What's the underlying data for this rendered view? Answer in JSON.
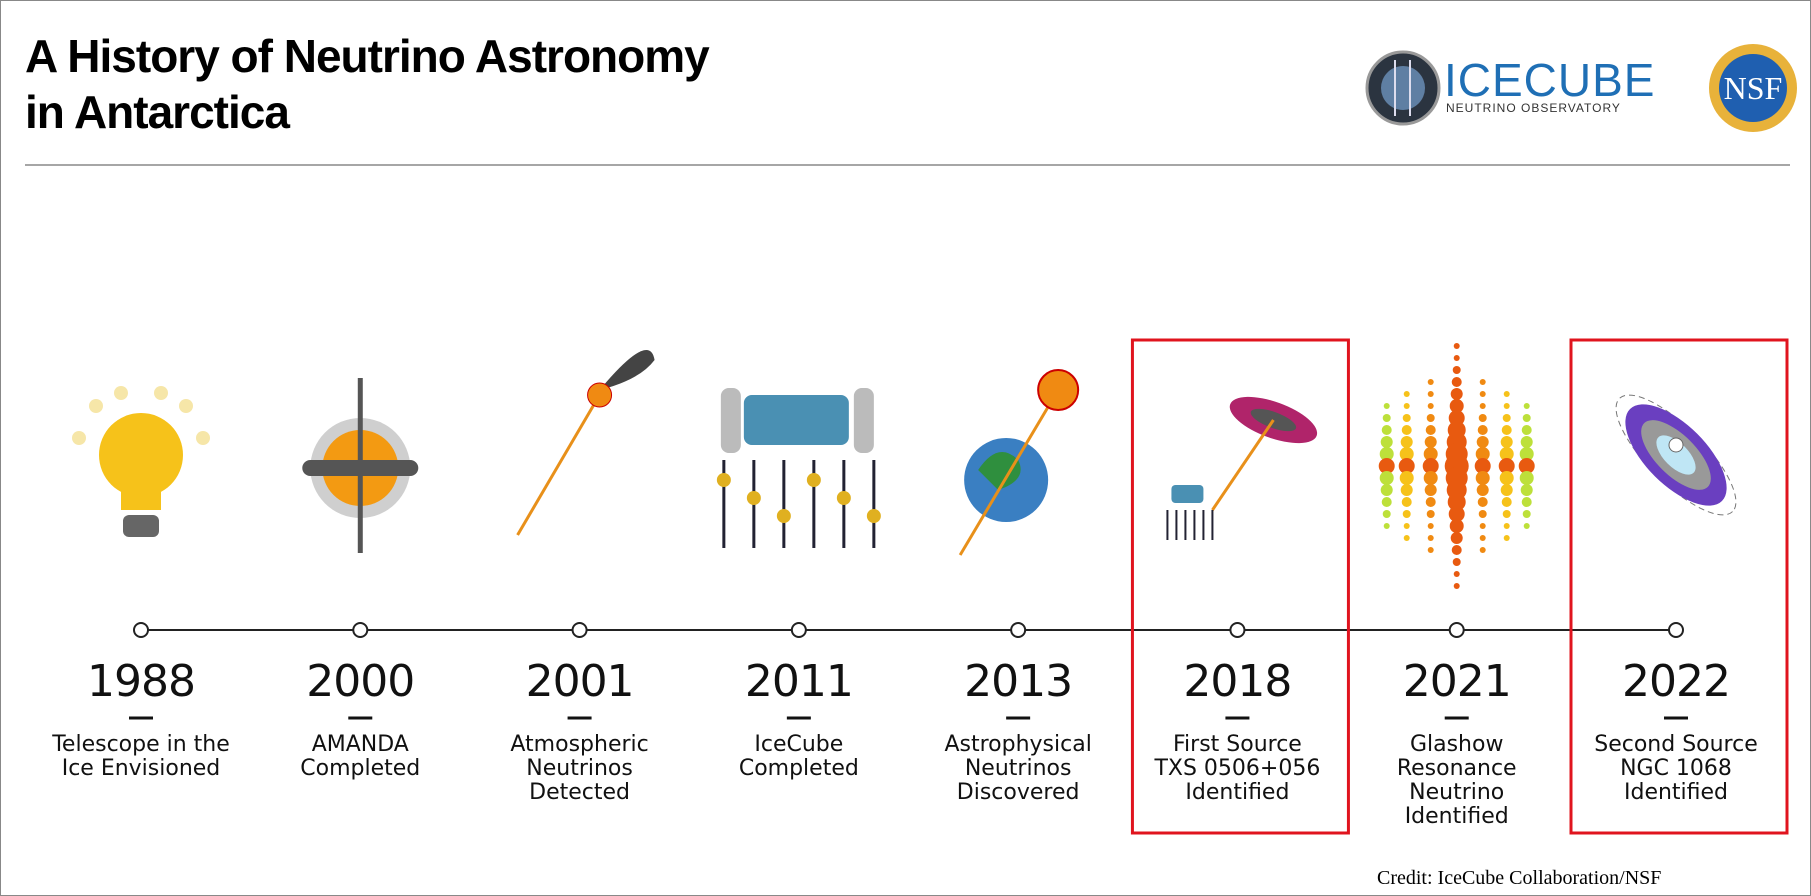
{
  "header": {
    "title_lines": [
      "A History of Neutrino Astronomy",
      "in Antarctica"
    ],
    "logo": {
      "name": "ICECUBE",
      "subtitle": "NEUTRINO OBSERVATORY"
    },
    "logo2": "NSF"
  },
  "events": [
    {
      "year": "1988",
      "lines": [
        "Telescope in the",
        "Ice Envisioned"
      ],
      "highlighted": false
    },
    {
      "year": "2000",
      "lines": [
        "AMANDA",
        "Completed"
      ],
      "highlighted": false
    },
    {
      "year": "2001",
      "lines": [
        "Atmospheric",
        "Neutrinos",
        "Detected"
      ],
      "highlighted": false
    },
    {
      "year": "2011",
      "lines": [
        "IceCube",
        "Completed"
      ],
      "highlighted": false
    },
    {
      "year": "2013",
      "lines": [
        "Astrophysical",
        "Neutrinos",
        "Discovered"
      ],
      "highlighted": false
    },
    {
      "year": "2018",
      "lines": [
        "First Source",
        "TXS 0506+056",
        "Identified"
      ],
      "highlighted": true
    },
    {
      "year": "2021",
      "lines": [
        "Glashow",
        "Resonance",
        "Neutrino",
        "Identified"
      ],
      "highlighted": false
    },
    {
      "year": "2022",
      "lines": [
        "Second Source",
        "NGC 1068",
        "Identified"
      ],
      "highlighted": true
    }
  ],
  "credit": "Credit: IceCube Collaboration/NSF"
}
